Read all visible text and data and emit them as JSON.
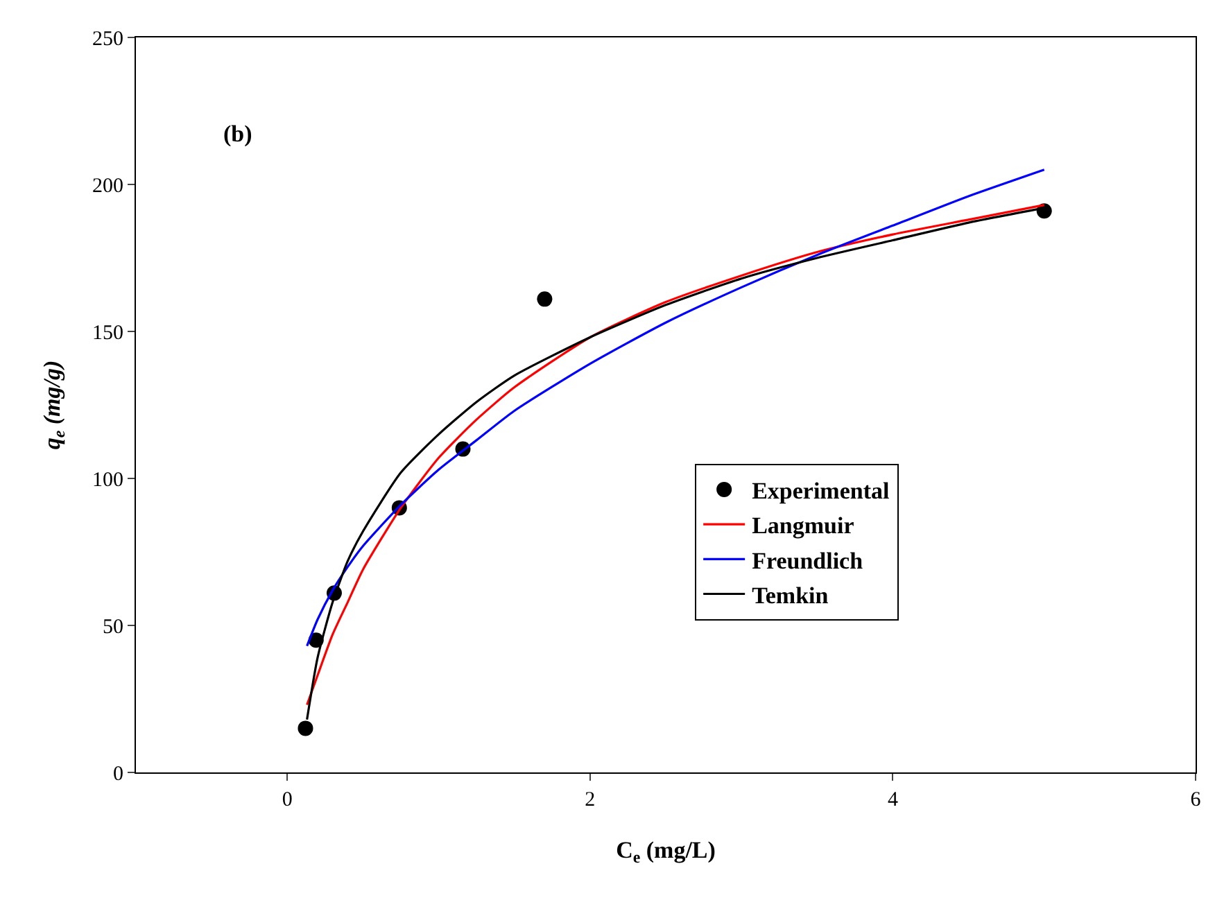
{
  "chart_data": {
    "type": "scatter",
    "xlabel": "C$_{e}$ (mg/L)",
    "ylabel": "q$_{e}$ (mg/g)",
    "annotations": [
      "(b)"
    ],
    "xlim": [
      -1,
      6
    ],
    "xticks": [
      0,
      2,
      4,
      6
    ],
    "ylim": [
      0,
      250
    ],
    "yticks": [
      0,
      50,
      100,
      150,
      200,
      250
    ],
    "grid": false,
    "legend": "bottom right",
    "series": [
      {
        "name": "Experimental",
        "type": "scatter",
        "marker": "circle",
        "color": "#000000",
        "x": [
          0.12,
          0.19,
          0.31,
          0.74,
          1.16,
          1.7,
          5.0
        ],
        "values": [
          15,
          45,
          61,
          90,
          110,
          161,
          191
        ]
      },
      {
        "name": "Langmuir",
        "type": "line",
        "color": "#ff0000",
        "x": [
          0.13,
          0.2,
          0.3,
          0.4,
          0.5,
          0.75,
          1,
          1.25,
          1.5,
          2,
          2.5,
          3,
          3.5,
          4,
          4.5,
          5
        ],
        "values": [
          23,
          33,
          47,
          58,
          69,
          90,
          107,
          120,
          131,
          148,
          160,
          169,
          177,
          183,
          188,
          193
        ]
      },
      {
        "name": "Freundlich",
        "type": "line",
        "color": "#0000ff",
        "x": [
          0.13,
          0.2,
          0.3,
          0.4,
          0.5,
          0.75,
          1,
          1.25,
          1.5,
          2,
          2.5,
          3,
          3.5,
          4,
          4.5,
          5
        ],
        "values": [
          43,
          52,
          62,
          70,
          77,
          91,
          103,
          113,
          123,
          139,
          153,
          165,
          176,
          186,
          196,
          205
        ]
      },
      {
        "name": "Temkin",
        "type": "line",
        "color": "#000000",
        "x": [
          0.13,
          0.2,
          0.3,
          0.4,
          0.5,
          0.75,
          1,
          1.25,
          1.5,
          2,
          2.5,
          3,
          3.5,
          4,
          4.5,
          5
        ],
        "values": [
          18,
          39,
          58,
          72,
          82,
          102,
          115,
          126,
          135,
          148,
          159,
          168,
          175,
          181,
          187,
          192
        ]
      }
    ]
  }
}
